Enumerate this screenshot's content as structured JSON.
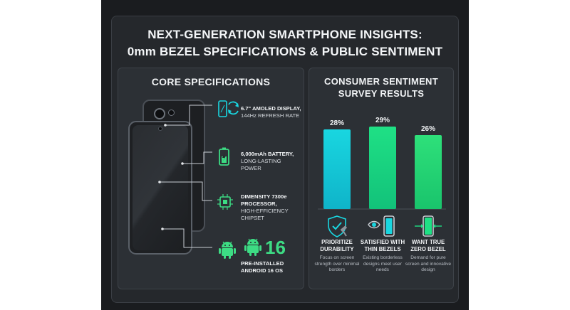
{
  "header": {
    "title_line1": "NEXT-GENERATION SMARTPHONE INSIGHTS:",
    "title_line2": "0mm BEZEL SPECIFICATIONS & PUBLIC SENTIMENT"
  },
  "specs_panel": {
    "title": "CORE SPECIFICATIONS",
    "items": [
      {
        "icon": "display-rotate-icon",
        "bold": "6.7\" AMOLED DISPLAY,",
        "text": "144Hz REFRESH RATE"
      },
      {
        "icon": "battery-icon",
        "bold": "6,000mAh BATTERY,",
        "text": "LONG-LASTING POWER"
      },
      {
        "icon": "chip-icon",
        "bold": "DIMENSITY 7300e PROCESSOR,",
        "text": "HIGH-EFFICIENCY CHIPSET"
      },
      {
        "icon": "android-icon",
        "bold": "PRE-INSTALLED ANDROID 16 OS",
        "text": "",
        "number": "16"
      }
    ]
  },
  "survey_panel": {
    "title_line1": "CONSUMER SENTIMENT",
    "title_line2": "SURVEY RESULTS"
  },
  "chart_data": {
    "type": "bar",
    "title": "CONSUMER SENTIMENT SURVEY RESULTS",
    "categories": [
      "PRIORITIZE DURABILITY",
      "SATISFIED WITH THIN BEZELS",
      "WANT TRUE ZERO BEZEL"
    ],
    "values": [
      28,
      29,
      26
    ],
    "value_labels": [
      "28%",
      "29%",
      "26%"
    ],
    "unit": "%",
    "ylim": [
      0,
      32
    ],
    "grid": false,
    "colors": [
      "#19d6e0",
      "#1fe085",
      "#26dc78"
    ],
    "descriptions": [
      "Focus on screen strength over minimal borders",
      "Existing borderless designs meet user needs",
      "Demand for pure screen and innovative design"
    ],
    "icons": [
      "shield-hammer-icon",
      "eye-phone-icon",
      "phone-arrows-icon"
    ]
  },
  "colors": {
    "accent_cyan": "#19d6e0",
    "accent_green": "#3ddc84",
    "panel_bg": "#2c3035",
    "stage_bg": "#1a1c1f"
  }
}
